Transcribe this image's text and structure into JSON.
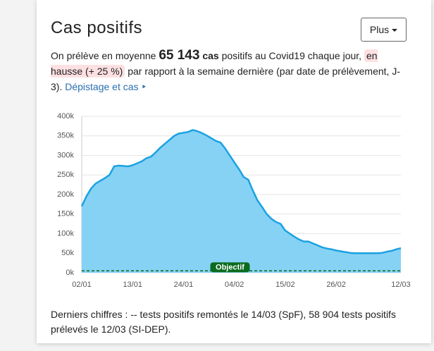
{
  "card": {
    "title": "Cas positifs",
    "button": "Plus",
    "intro": "On prélève en moyenne",
    "average": "65 143",
    "unit": "cas",
    "after": "positifs au Covid19 chaque jour,",
    "trend": "en hausse (+ 25 %)",
    "rest": "par rapport à la semaine dernière (par date de prélèvement, J-3).",
    "link": "Dépistage et cas ‣",
    "footer": "Derniers chiffres : -- tests positifs remontés le 14/03 (SpF), 58 904 tests positifs prélevés le 12/03 (SI-DEP)."
  },
  "chart_data": {
    "type": "area",
    "categories": [
      "02/01",
      null,
      null,
      null,
      null,
      null,
      null,
      null,
      null,
      null,
      null,
      "13/01",
      null,
      null,
      null,
      null,
      null,
      null,
      null,
      null,
      null,
      null,
      "24/01",
      null,
      null,
      null,
      null,
      null,
      null,
      null,
      null,
      null,
      null,
      "04/02",
      null,
      null,
      null,
      null,
      null,
      null,
      null,
      null,
      null,
      null,
      "15/02",
      null,
      null,
      null,
      null,
      null,
      null,
      null,
      null,
      null,
      null,
      "26/02",
      null,
      null,
      null,
      null,
      null,
      null,
      null,
      null,
      null,
      null,
      null,
      null,
      null,
      "12/03"
    ],
    "series": [
      {
        "name": "Cas positifs",
        "color": "#1ba1e2",
        "fill": "#86d2f4",
        "values": [
          170000,
          195000,
          215000,
          228000,
          235000,
          242000,
          250000,
          272000,
          274000,
          273000,
          272000,
          275000,
          280000,
          285000,
          293000,
          297000,
          308000,
          320000,
          330000,
          340000,
          350000,
          356000,
          358000,
          360000,
          365000,
          362000,
          357000,
          351000,
          344000,
          337000,
          333000,
          318000,
          300000,
          282000,
          265000,
          245000,
          238000,
          210000,
          185000,
          168000,
          150000,
          138000,
          130000,
          125000,
          108000,
          100000,
          92000,
          85000,
          80000,
          80000,
          75000,
          70000,
          65000,
          62000,
          60000,
          57000,
          55000,
          53000,
          51000,
          50000,
          50000,
          50000,
          50000,
          50000,
          50000,
          51000,
          54000,
          56000,
          60000,
          63000
        ]
      }
    ],
    "ylim": [
      0,
      400000
    ],
    "yticks": [
      {
        "value": 0,
        "label": "0k"
      },
      {
        "value": 50000,
        "label": "50k"
      },
      {
        "value": 100000,
        "label": "100k"
      },
      {
        "value": 150000,
        "label": "150k"
      },
      {
        "value": 200000,
        "label": "200k"
      },
      {
        "value": 250000,
        "label": "250k"
      },
      {
        "value": 300000,
        "label": "300k"
      },
      {
        "value": 350000,
        "label": "350k"
      },
      {
        "value": 400000,
        "label": "400k"
      }
    ],
    "grid": true,
    "objective": {
      "label": "Objectif",
      "value": 5000,
      "color": "#0b6b1f"
    }
  }
}
